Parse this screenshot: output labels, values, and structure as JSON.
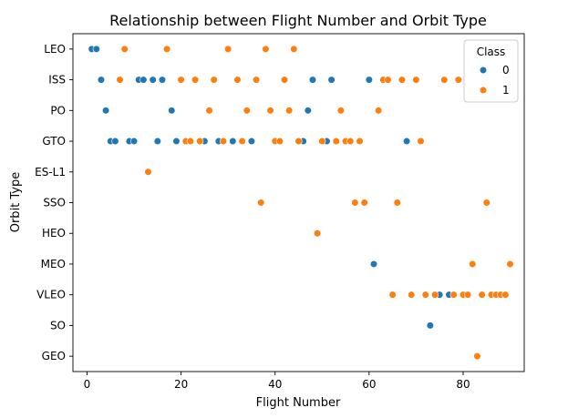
{
  "chart_data": {
    "type": "scatter",
    "title": "Relationship between Flight Number and Orbit Type",
    "xlabel": "Flight Number",
    "ylabel": "Orbit Type",
    "xlim": [
      -3,
      93
    ],
    "xticks": [
      0,
      20,
      40,
      60,
      80
    ],
    "categories": [
      "LEO",
      "ISS",
      "PO",
      "GTO",
      "ES-L1",
      "SSO",
      "HEO",
      "MEO",
      "VLEO",
      "SO",
      "GEO"
    ],
    "grid": false,
    "legend": {
      "title": "Class",
      "placement": "top-right"
    },
    "series": [
      {
        "name": "0",
        "color": "#1f77b4",
        "points": [
          [
            1,
            "LEO"
          ],
          [
            2,
            "LEO"
          ],
          [
            3,
            "ISS"
          ],
          [
            11,
            "ISS"
          ],
          [
            12,
            "ISS"
          ],
          [
            14,
            "ISS"
          ],
          [
            16,
            "ISS"
          ],
          [
            48,
            "ISS"
          ],
          [
            52,
            "ISS"
          ],
          [
            60,
            "ISS"
          ],
          [
            4,
            "PO"
          ],
          [
            18,
            "PO"
          ],
          [
            47,
            "PO"
          ],
          [
            5,
            "GTO"
          ],
          [
            6,
            "GTO"
          ],
          [
            9,
            "GTO"
          ],
          [
            10,
            "GTO"
          ],
          [
            15,
            "GTO"
          ],
          [
            19,
            "GTO"
          ],
          [
            25,
            "GTO"
          ],
          [
            28,
            "GTO"
          ],
          [
            31,
            "GTO"
          ],
          [
            35,
            "GTO"
          ],
          [
            46,
            "GTO"
          ],
          [
            51,
            "GTO"
          ],
          [
            68,
            "GTO"
          ],
          [
            61,
            "MEO"
          ],
          [
            75,
            "VLEO"
          ],
          [
            77,
            "VLEO"
          ],
          [
            73,
            "SO"
          ]
        ]
      },
      {
        "name": "1",
        "color": "#ff7f0e",
        "points": [
          [
            8,
            "LEO"
          ],
          [
            17,
            "LEO"
          ],
          [
            30,
            "LEO"
          ],
          [
            38,
            "LEO"
          ],
          [
            44,
            "LEO"
          ],
          [
            7,
            "ISS"
          ],
          [
            20,
            "ISS"
          ],
          [
            23,
            "ISS"
          ],
          [
            27,
            "ISS"
          ],
          [
            32,
            "ISS"
          ],
          [
            36,
            "ISS"
          ],
          [
            42,
            "ISS"
          ],
          [
            63,
            "ISS"
          ],
          [
            64,
            "ISS"
          ],
          [
            67,
            "ISS"
          ],
          [
            70,
            "ISS"
          ],
          [
            76,
            "ISS"
          ],
          [
            79,
            "ISS"
          ],
          [
            26,
            "PO"
          ],
          [
            34,
            "PO"
          ],
          [
            39,
            "PO"
          ],
          [
            43,
            "PO"
          ],
          [
            54,
            "PO"
          ],
          [
            62,
            "PO"
          ],
          [
            21,
            "GTO"
          ],
          [
            22,
            "GTO"
          ],
          [
            24,
            "GTO"
          ],
          [
            29,
            "GTO"
          ],
          [
            33,
            "GTO"
          ],
          [
            40,
            "GTO"
          ],
          [
            41,
            "GTO"
          ],
          [
            45,
            "GTO"
          ],
          [
            50,
            "GTO"
          ],
          [
            53,
            "GTO"
          ],
          [
            55,
            "GTO"
          ],
          [
            56,
            "GTO"
          ],
          [
            58,
            "GTO"
          ],
          [
            71,
            "GTO"
          ],
          [
            13,
            "ES-L1"
          ],
          [
            37,
            "SSO"
          ],
          [
            57,
            "SSO"
          ],
          [
            59,
            "SSO"
          ],
          [
            66,
            "SSO"
          ],
          [
            85,
            "SSO"
          ],
          [
            49,
            "HEO"
          ],
          [
            82,
            "MEO"
          ],
          [
            90,
            "MEO"
          ],
          [
            65,
            "VLEO"
          ],
          [
            69,
            "VLEO"
          ],
          [
            72,
            "VLEO"
          ],
          [
            74,
            "VLEO"
          ],
          [
            78,
            "VLEO"
          ],
          [
            80,
            "VLEO"
          ],
          [
            81,
            "VLEO"
          ],
          [
            84,
            "VLEO"
          ],
          [
            86,
            "VLEO"
          ],
          [
            87,
            "VLEO"
          ],
          [
            88,
            "VLEO"
          ],
          [
            89,
            "VLEO"
          ],
          [
            83,
            "GEO"
          ]
        ]
      }
    ]
  }
}
